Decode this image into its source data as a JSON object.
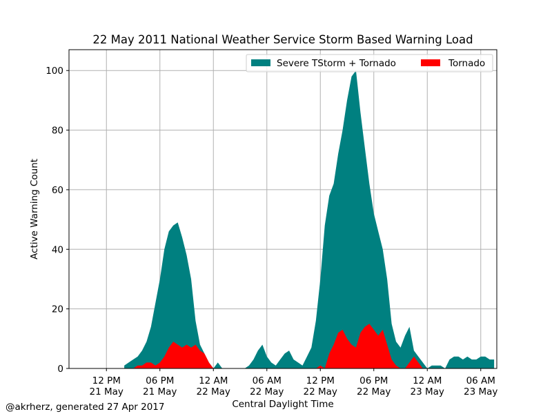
{
  "chart_data": {
    "type": "area",
    "title": "22 May 2011 National Weather Service Storm Based Warning Load",
    "xlabel": "Central Daylight Time",
    "ylabel": "Active Warning Count",
    "credit": "@akrherz, generated 27 Apr 2017",
    "x_unit": "hours since 00:00 CDT 21 May 2011",
    "xlim": [
      7.8,
      55.8
    ],
    "ylim": [
      0,
      107
    ],
    "grid": true,
    "legend_position": "top-right",
    "colors": {
      "total": "#008080",
      "tornado": "#ff0000"
    },
    "x_ticks": [
      {
        "value": 12,
        "line1": "12 PM",
        "line2": "21 May"
      },
      {
        "value": 18,
        "line1": "06 PM",
        "line2": "21 May"
      },
      {
        "value": 24,
        "line1": "12 AM",
        "line2": "22 May"
      },
      {
        "value": 30,
        "line1": "06 AM",
        "line2": "22 May"
      },
      {
        "value": 36,
        "line1": "12 PM",
        "line2": "22 May"
      },
      {
        "value": 42,
        "line1": "06 PM",
        "line2": "22 May"
      },
      {
        "value": 48,
        "line1": "12 AM",
        "line2": "23 May"
      },
      {
        "value": 54,
        "line1": "06 AM",
        "line2": "23 May"
      }
    ],
    "y_ticks": [
      0,
      20,
      40,
      60,
      80,
      100
    ],
    "series": [
      {
        "name": "Severe TStorm + Tornado",
        "color": "#008080",
        "x": [
          14.0,
          14.5,
          15.0,
          15.5,
          16.0,
          16.5,
          17.0,
          17.5,
          18.0,
          18.5,
          19.0,
          19.5,
          20.0,
          20.5,
          21.0,
          21.5,
          22.0,
          22.5,
          23.0,
          23.5,
          24.0,
          24.5,
          25.0,
          25.5,
          26.0,
          26.5,
          27.0,
          27.5,
          28.0,
          28.5,
          29.0,
          29.5,
          30.0,
          30.5,
          31.0,
          31.5,
          32.0,
          32.5,
          33.0,
          33.5,
          34.0,
          34.5,
          35.0,
          35.5,
          36.0,
          36.5,
          37.0,
          37.5,
          38.0,
          38.5,
          39.0,
          39.5,
          40.0,
          40.5,
          41.0,
          41.5,
          42.0,
          42.5,
          43.0,
          43.5,
          44.0,
          44.5,
          45.0,
          45.5,
          46.0,
          46.5,
          47.0,
          47.5,
          48.0,
          48.5,
          49.0,
          49.5,
          50.0,
          50.5,
          51.0,
          51.5,
          52.0,
          52.5,
          53.0,
          53.5,
          54.0,
          54.5,
          55.0,
          55.5
        ],
        "values": [
          1,
          2,
          3,
          4,
          6,
          9,
          14,
          22,
          30,
          40,
          46,
          48,
          49,
          44,
          38,
          30,
          16,
          8,
          5,
          2,
          0,
          2,
          0,
          0,
          0,
          0,
          0,
          0,
          1,
          3,
          6,
          8,
          4,
          2,
          1,
          3,
          5,
          6,
          3,
          2,
          1,
          4,
          7,
          16,
          30,
          48,
          58,
          62,
          72,
          80,
          90,
          98,
          100,
          86,
          74,
          62,
          52,
          46,
          40,
          30,
          15,
          9,
          7,
          11,
          14,
          6,
          4,
          2,
          0,
          1,
          1,
          1,
          0,
          3,
          4,
          4,
          3,
          4,
          3,
          3,
          4,
          4,
          3,
          3
        ]
      },
      {
        "name": "Tornado",
        "color": "#ff0000",
        "x": [
          14.0,
          14.5,
          15.0,
          15.5,
          16.0,
          16.5,
          17.0,
          17.5,
          18.0,
          18.5,
          19.0,
          19.5,
          20.0,
          20.5,
          21.0,
          21.5,
          22.0,
          22.5,
          23.0,
          23.5,
          24.0,
          24.5,
          25.0,
          25.5,
          26.0,
          26.5,
          27.0,
          27.5,
          28.0,
          28.5,
          29.0,
          29.5,
          30.0,
          30.5,
          31.0,
          31.5,
          32.0,
          32.5,
          33.0,
          33.5,
          34.0,
          34.5,
          35.0,
          35.5,
          36.0,
          36.5,
          37.0,
          37.5,
          38.0,
          38.5,
          39.0,
          39.5,
          40.0,
          40.5,
          41.0,
          41.5,
          42.0,
          42.5,
          43.0,
          43.5,
          44.0,
          44.5,
          45.0,
          45.5,
          46.0,
          46.5,
          47.0,
          47.5,
          48.0,
          48.5,
          49.0,
          49.5,
          50.0,
          50.5,
          51.0,
          51.5,
          52.0,
          52.5,
          53.0,
          53.5,
          54.0,
          54.5,
          55.0,
          55.5
        ],
        "values": [
          0,
          0,
          0,
          1,
          1,
          2,
          2,
          1,
          2,
          4,
          7,
          9,
          8,
          7,
          8,
          7,
          8,
          6,
          5,
          2,
          0,
          0,
          0,
          0,
          0,
          0,
          0,
          0,
          0,
          0,
          0,
          0,
          0,
          0,
          0,
          0,
          0,
          0,
          0,
          0,
          0,
          0,
          0,
          0,
          1,
          0,
          5,
          8,
          12,
          13,
          10,
          8,
          7,
          12,
          14,
          15,
          13,
          11,
          13,
          8,
          3,
          1,
          0,
          0,
          2,
          4,
          2,
          0,
          0,
          0,
          0,
          0,
          0,
          0,
          0,
          0,
          0,
          0,
          0,
          0,
          0,
          0,
          0,
          0
        ]
      }
    ]
  }
}
